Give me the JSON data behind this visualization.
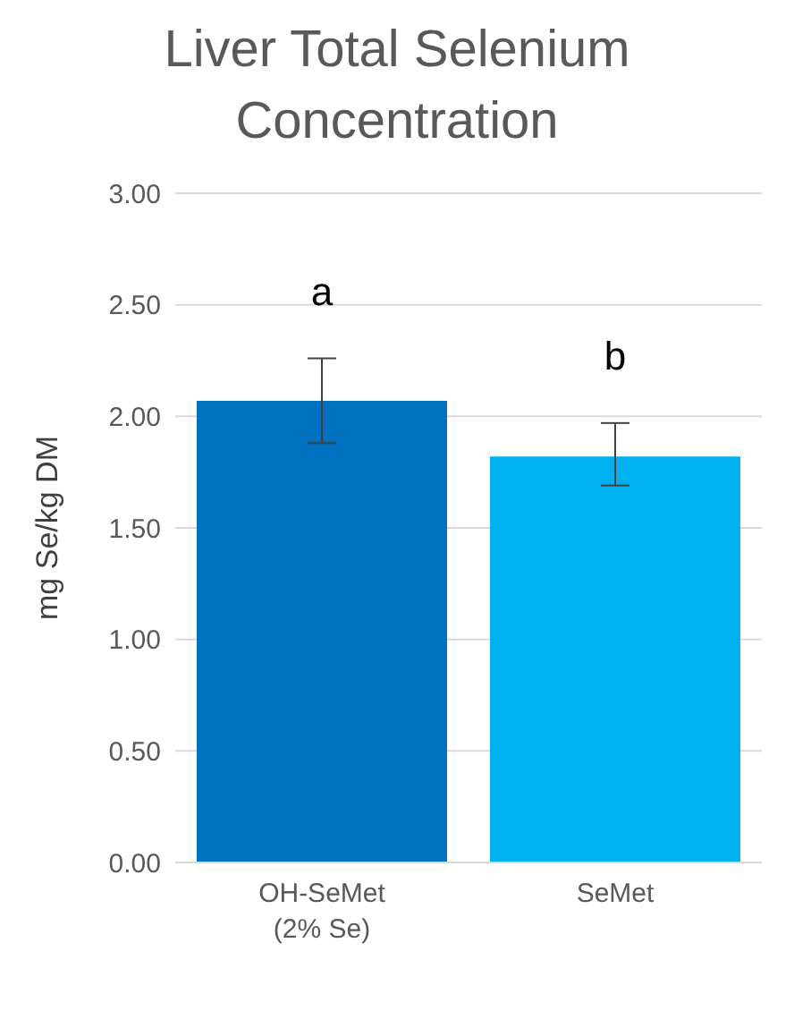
{
  "chart_data": {
    "type": "bar",
    "title": "Liver Total Selenium Concentration",
    "ylabel": "mg Se/kg DM",
    "categories": [
      "OH-SeMet\n(2% Se)",
      "SeMet"
    ],
    "values": [
      2.07,
      1.82
    ],
    "colors": [
      "#0070c0",
      "#00b0f0"
    ],
    "errors": [
      [
        1.88,
        2.26
      ],
      [
        1.69,
        1.97
      ]
    ],
    "ylim": [
      0,
      3
    ],
    "yticks": [
      {
        "value": 0,
        "label": "0.00"
      },
      {
        "value": 0.5,
        "label": "0.50"
      },
      {
        "value": 1,
        "label": "1.00"
      },
      {
        "value": 1.5,
        "label": "1.50"
      },
      {
        "value": 2,
        "label": "2.00"
      },
      {
        "value": 2.5,
        "label": "2.50"
      },
      {
        "value": 3,
        "label": "3.00"
      }
    ],
    "grid": "y",
    "annotations": [
      "a",
      "b"
    ]
  }
}
